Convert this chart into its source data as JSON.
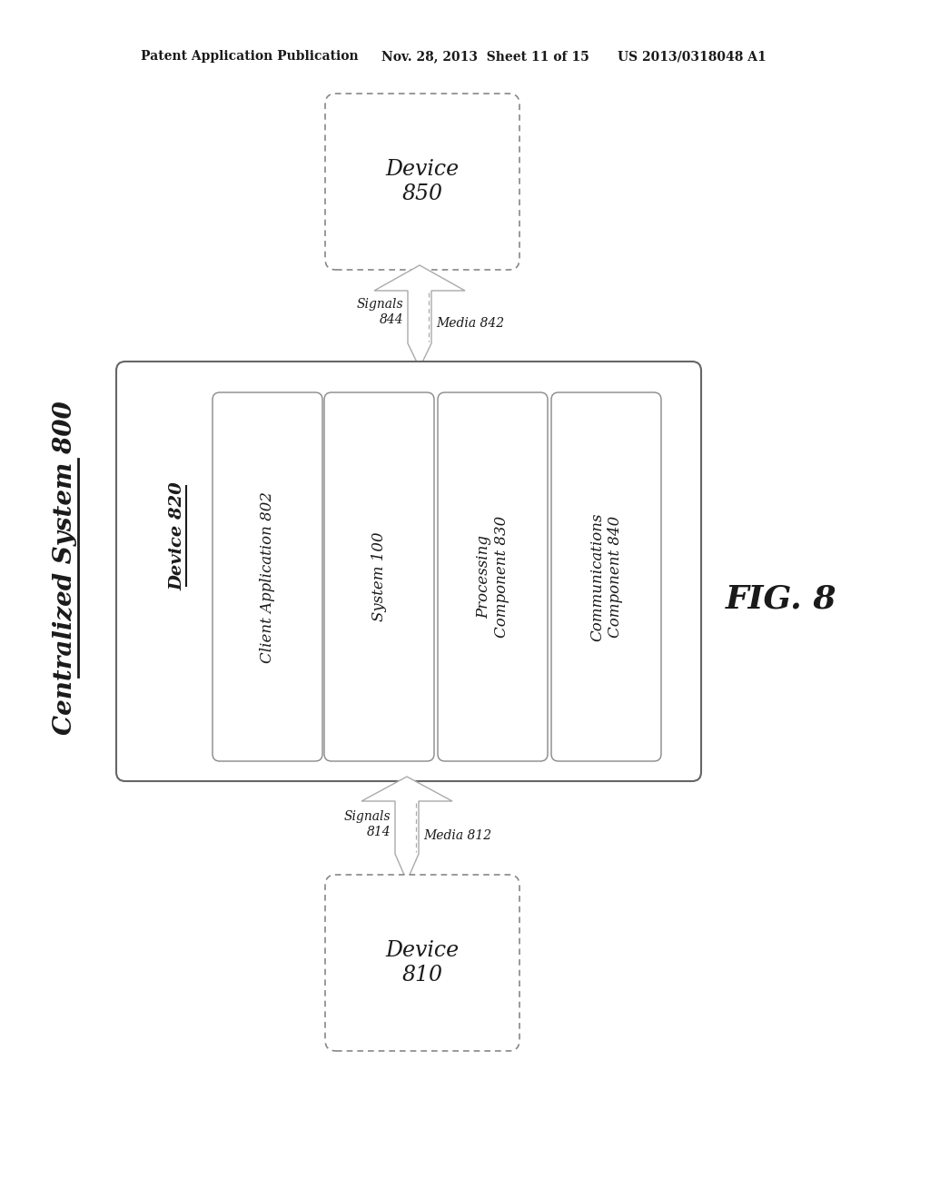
{
  "bg_color": "#ffffff",
  "header_left": "Patent Application Publication",
  "header_mid": "Nov. 28, 2013  Sheet 11 of 15",
  "header_right": "US 2013/0318048 A1",
  "fig_label": "FIG. 8",
  "centralized_label": "Centralized System 800",
  "device850_label": "Device\n850",
  "device820_label": "Device 820",
  "device810_label": "Device\n810",
  "signals_top": "Signals\n844",
  "media_top": "Media 842",
  "signals_bot": "Signals\n814",
  "media_bot": "Media 812",
  "inner_boxes": [
    "Client Application 802",
    "System 100",
    "Processing\nComponent 830",
    "Communications\nComponent 840"
  ],
  "line_color": "#888888",
  "text_color": "#1a1a1a",
  "dashed_color": "#aaaaaa"
}
